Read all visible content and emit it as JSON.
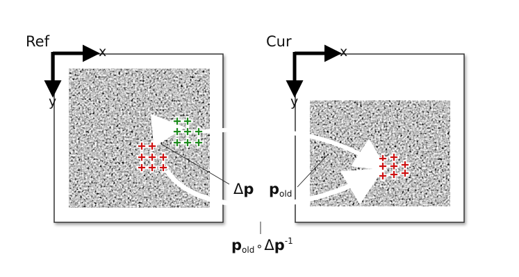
{
  "panels": {
    "ref": {
      "title": "Ref",
      "x_axis": "x",
      "y_axis": "y"
    },
    "cur": {
      "title": "Cur",
      "x_axis": "x",
      "y_axis": "y"
    }
  },
  "annotations": {
    "delta_p": {
      "symbol": "Δ",
      "var": "p"
    },
    "p_old": {
      "var": "p",
      "sub": "old"
    },
    "composition": {
      "var": "p",
      "sub": "old",
      "op": "∘",
      "symbol": "Δ",
      "var2": "p",
      "sup": "-1"
    }
  },
  "colors": {
    "ref_markers": "#cc1111",
    "warp_markers": "#1d8a1d",
    "cur_markers": "#cc1111",
    "arrow": "#ffffff",
    "frame": "#222222"
  }
}
